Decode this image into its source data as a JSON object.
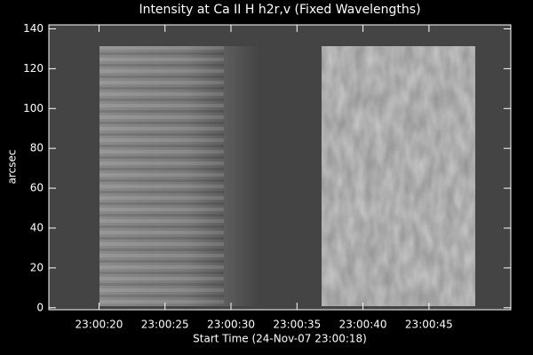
{
  "chart_data": {
    "type": "image",
    "title": "Intensity at Ca II H h2r,v (Fixed Wavelengths)",
    "x_label": "Start Time (24-Nov-07 23:00:18)",
    "y_label": "arcsec",
    "xlim": [
      16.2,
      51.2
    ],
    "xticks": [
      {
        "value": 20,
        "label": "23:00:20"
      },
      {
        "value": 25,
        "label": "23:00:25"
      },
      {
        "value": 30,
        "label": "23:00:30"
      },
      {
        "value": 35,
        "label": "23:00:35"
      },
      {
        "value": 40,
        "label": "23:00:40"
      },
      {
        "value": 45,
        "label": "23:00:45"
      }
    ],
    "ylim": [
      -1,
      142
    ],
    "yticks": [
      0,
      20,
      40,
      60,
      80,
      100,
      120,
      140
    ]
  }
}
